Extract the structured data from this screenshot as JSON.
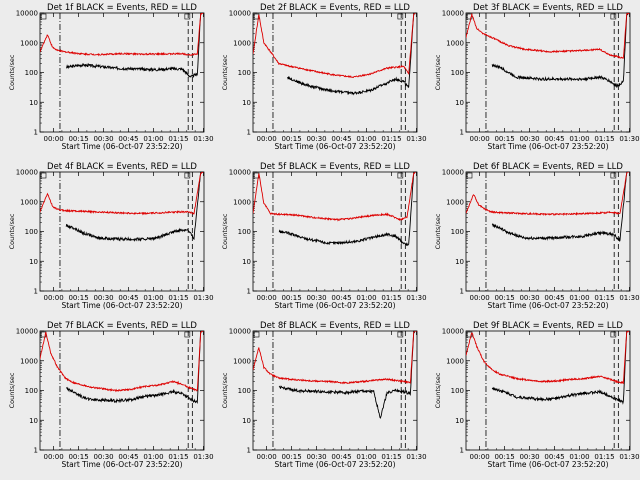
{
  "figure": {
    "background": "#ececec",
    "colors": {
      "events": "#000000",
      "lld": "#dd0000"
    }
  },
  "chart_data": [
    {
      "type": "line",
      "title": "Det 1f BLACK = Events, RED = LLD",
      "xlabel": "Start Time (06-Oct-07 23:52:20)",
      "ylabel": "Counts/sec",
      "y_scale": "log",
      "ylim": [
        1,
        10000
      ],
      "y_ticklabels": [
        "1",
        "10",
        "100",
        "1000",
        "10000"
      ],
      "xlim_minutes": [
        -0.5,
        98
      ],
      "x_ticklabels": [
        "00:00",
        "00:15",
        "00:30",
        "00:45",
        "01:00",
        "01:15",
        "01:30"
      ],
      "series": [
        {
          "name": "Events",
          "color": "#000000",
          "x": [
            2,
            6,
            9,
            15,
            25,
            35,
            45,
            60,
            70,
            78,
            85,
            90,
            94,
            96,
            98
          ],
          "y": [
            null,
            null,
            null,
            150,
            180,
            160,
            140,
            130,
            125,
            135,
            130,
            70,
            90,
            10000,
            12000
          ]
        },
        {
          "name": "LLD",
          "color": "#dd0000",
          "x": [
            -0.5,
            4,
            7,
            10,
            14,
            25,
            35,
            50,
            60,
            75,
            85,
            90,
            94,
            96,
            98
          ],
          "y": [
            500,
            1900,
            700,
            550,
            500,
            420,
            400,
            430,
            410,
            420,
            430,
            390,
            420,
            9000,
            11000
          ]
        }
      ],
      "markers": {
        "dotted_minutes": [],
        "dashdot_minutes": [
          11.5
        ],
        "dashed_minutes": [
          88.5,
          91
        ]
      }
    },
    {
      "type": "line",
      "title": "Det 2f BLACK = Events, RED = LLD",
      "xlabel": "Start Time (06-Oct-07 23:52:20)",
      "ylabel": "Counts/sec",
      "y_scale": "log",
      "ylim": [
        1,
        10000
      ],
      "y_ticklabels": [
        "1",
        "10",
        "100",
        "1000",
        "10000"
      ],
      "xlim_minutes": [
        -0.5,
        98
      ],
      "x_ticklabels": [
        "00:00",
        "00:15",
        "00:30",
        "00:45",
        "01:00",
        "01:15",
        "01:30"
      ],
      "series": [
        {
          "name": "Events",
          "color": "#000000",
          "x": [
            -0.5,
            5,
            10,
            20,
            30,
            45,
            60,
            70,
            80,
            85,
            90,
            93,
            96,
            98
          ],
          "y": [
            null,
            null,
            null,
            70,
            40,
            25,
            20,
            25,
            45,
            60,
            50,
            30,
            10000,
            12000
          ]
        },
        {
          "name": "LLD",
          "color": "#dd0000",
          "x": [
            -0.5,
            3,
            6,
            10,
            15,
            20,
            30,
            40,
            50,
            60,
            70,
            80,
            90,
            93,
            96,
            98
          ],
          "y": [
            400,
            9000,
            1000,
            500,
            200,
            170,
            130,
            100,
            80,
            70,
            90,
            140,
            160,
            90,
            9000,
            11000
          ]
        }
      ],
      "markers": {
        "dotted_minutes": [],
        "dashdot_minutes": [
          11.5
        ],
        "dashed_minutes": [
          88.5,
          91
        ]
      }
    },
    {
      "type": "line",
      "title": "Det 3f BLACK = Events, RED = LLD",
      "xlabel": "Start Time (06-Oct-07 23:52:20)",
      "ylabel": "Counts/sec",
      "y_scale": "log",
      "ylim": [
        1,
        10000
      ],
      "y_ticklabels": [
        "1",
        "10",
        "100",
        "1000",
        "10000"
      ],
      "xlim_minutes": [
        -0.5,
        98
      ],
      "x_ticklabels": [
        "00:00",
        "00:15",
        "00:30",
        "00:45",
        "01:00",
        "01:15",
        "01:30"
      ],
      "series": [
        {
          "name": "Events",
          "color": "#000000",
          "x": [
            2,
            6,
            9,
            15,
            20,
            25,
            30,
            45,
            60,
            70,
            80,
            85,
            90,
            94,
            96,
            98
          ],
          "y": [
            null,
            null,
            null,
            180,
            150,
            100,
            70,
            60,
            60,
            60,
            70,
            55,
            35,
            50,
            9000,
            12000
          ]
        },
        {
          "name": "LLD",
          "color": "#dd0000",
          "x": [
            -0.5,
            3,
            6,
            10,
            15,
            25,
            35,
            50,
            60,
            70,
            80,
            85,
            90,
            94,
            96,
            98
          ],
          "y": [
            1500,
            9000,
            3000,
            2000,
            1500,
            800,
            600,
            500,
            520,
            550,
            600,
            400,
            350,
            300,
            9000,
            11000
          ]
        }
      ],
      "markers": {
        "dotted_minutes": [],
        "dashdot_minutes": [
          11.5
        ],
        "dashed_minutes": [
          88.5,
          91
        ]
      }
    },
    {
      "type": "line",
      "title": "Det 4f BLACK = Events, RED = LLD",
      "xlabel": "Start Time (06-Oct-07 23:52:20)",
      "ylabel": "Counts/sec",
      "y_scale": "log",
      "ylim": [
        1,
        10000
      ],
      "y_ticklabels": [
        "1",
        "10",
        "100",
        "1000",
        "10000"
      ],
      "xlim_minutes": [
        -0.5,
        98
      ],
      "x_ticklabels": [
        "00:00",
        "00:15",
        "00:30",
        "00:45",
        "01:00",
        "01:15",
        "01:30"
      ],
      "series": [
        {
          "name": "Events",
          "color": "#000000",
          "x": [
            2,
            6,
            9,
            15,
            20,
            25,
            35,
            50,
            60,
            70,
            80,
            88,
            92,
            96,
            98
          ],
          "y": [
            null,
            null,
            null,
            160,
            130,
            90,
            60,
            55,
            55,
            60,
            100,
            120,
            60,
            10000,
            12000
          ]
        },
        {
          "name": "LLD",
          "color": "#dd0000",
          "x": [
            -0.5,
            4,
            7,
            10,
            15,
            25,
            35,
            50,
            60,
            70,
            80,
            88,
            92,
            96,
            98
          ],
          "y": [
            450,
            1900,
            700,
            550,
            500,
            480,
            450,
            420,
            400,
            420,
            450,
            460,
            400,
            9000,
            11000
          ]
        }
      ],
      "markers": {
        "dotted_minutes": [],
        "dashdot_minutes": [
          11.5
        ],
        "dashed_minutes": [
          88.5,
          91
        ]
      }
    },
    {
      "type": "line",
      "title": "Det 5f BLACK = Events, RED = LLD",
      "xlabel": "Start Time (06-Oct-07 23:52:20)",
      "ylabel": "Counts/sec",
      "y_scale": "log",
      "ylim": [
        1,
        10000
      ],
      "y_ticklabels": [
        "1",
        "10",
        "100",
        "1000",
        "10000"
      ],
      "xlim_minutes": [
        -0.5,
        98
      ],
      "x_ticklabels": [
        "00:00",
        "00:15",
        "00:30",
        "00:45",
        "01:00",
        "01:15",
        "01:30"
      ],
      "series": [
        {
          "name": "Events",
          "color": "#000000",
          "x": [
            -0.5,
            5,
            10,
            15,
            20,
            30,
            45,
            60,
            70,
            80,
            85,
            90,
            93,
            96,
            98
          ],
          "y": [
            null,
            null,
            null,
            100,
            90,
            60,
            40,
            45,
            60,
            80,
            70,
            40,
            35,
            10000,
            12000
          ]
        },
        {
          "name": "LLD",
          "color": "#dd0000",
          "x": [
            -0.5,
            3,
            6,
            10,
            15,
            25,
            35,
            50,
            60,
            70,
            80,
            88,
            92,
            96,
            98
          ],
          "y": [
            400,
            9000,
            900,
            400,
            380,
            360,
            300,
            250,
            280,
            340,
            380,
            250,
            300,
            9000,
            11000
          ]
        }
      ],
      "markers": {
        "dotted_minutes": [],
        "dashdot_minutes": [
          11.5
        ],
        "dashed_minutes": [
          88.5,
          91
        ]
      }
    },
    {
      "type": "line",
      "title": "Det 6f BLACK = Events, RED = LLD",
      "xlabel": "Start Time (06-Oct-07 23:52:20)",
      "ylabel": "Counts/sec",
      "y_scale": "log",
      "ylim": [
        1,
        10000
      ],
      "y_ticklabels": [
        "1",
        "10",
        "100",
        "1000",
        "10000"
      ],
      "xlim_minutes": [
        -0.5,
        98
      ],
      "x_ticklabels": [
        "00:00",
        "00:15",
        "00:30",
        "00:45",
        "01:00",
        "01:15",
        "01:30"
      ],
      "series": [
        {
          "name": "Events",
          "color": "#000000",
          "x": [
            2,
            6,
            9,
            15,
            20,
            25,
            35,
            50,
            60,
            70,
            80,
            88,
            92,
            96,
            98
          ],
          "y": [
            null,
            null,
            null,
            170,
            130,
            90,
            60,
            60,
            65,
            70,
            90,
            80,
            50,
            10000,
            12000
          ]
        },
        {
          "name": "LLD",
          "color": "#dd0000",
          "x": [
            -0.5,
            4,
            7,
            10,
            15,
            25,
            35,
            50,
            60,
            70,
            80,
            88,
            92,
            96,
            98
          ],
          "y": [
            400,
            1800,
            800,
            600,
            450,
            420,
            400,
            380,
            380,
            400,
            420,
            440,
            400,
            9000,
            11000
          ]
        }
      ],
      "markers": {
        "dotted_minutes": [],
        "dashdot_minutes": [
          11.5
        ],
        "dashed_minutes": [
          88.5,
          91
        ]
      }
    },
    {
      "type": "line",
      "title": "Det 7f BLACK = Events, RED = LLD",
      "xlabel": "Start Time (06-Oct-07 23:52:20)",
      "ylabel": "Counts/sec",
      "y_scale": "log",
      "ylim": [
        1,
        10000
      ],
      "y_ticklabels": [
        "1",
        "10",
        "100",
        "1000",
        "10000"
      ],
      "xlim_minutes": [
        -0.5,
        98
      ],
      "x_ticklabels": [
        "00:00",
        "00:15",
        "00:30",
        "00:45",
        "01:00",
        "01:15",
        "01:30"
      ],
      "series": [
        {
          "name": "Events",
          "color": "#000000",
          "x": [
            2,
            6,
            9,
            15,
            20,
            25,
            30,
            45,
            55,
            60,
            70,
            80,
            85,
            90,
            94,
            96,
            98
          ],
          "y": [
            null,
            null,
            null,
            120,
            90,
            60,
            50,
            45,
            50,
            60,
            70,
            90,
            80,
            50,
            40,
            10000,
            12000
          ]
        },
        {
          "name": "LLD",
          "color": "#dd0000",
          "x": [
            -0.5,
            3,
            6,
            10,
            15,
            20,
            30,
            45,
            55,
            60,
            70,
            80,
            85,
            90,
            94,
            96,
            98
          ],
          "y": [
            1200,
            9000,
            1800,
            600,
            250,
            180,
            130,
            100,
            110,
            130,
            150,
            200,
            160,
            120,
            100,
            9000,
            11000
          ]
        }
      ],
      "markers": {
        "dotted_minutes": [],
        "dashdot_minutes": [
          11.5
        ],
        "dashed_minutes": [
          88.5,
          91
        ]
      }
    },
    {
      "type": "line",
      "title": "Det 8f BLACK = Events, RED = LLD",
      "xlabel": "Start Time (06-Oct-07 23:52:20)",
      "ylabel": "Counts/sec",
      "y_scale": "log",
      "ylim": [
        1,
        10000
      ],
      "y_ticklabels": [
        "1",
        "10",
        "100",
        "1000",
        "10000"
      ],
      "xlim_minutes": [
        -0.5,
        98
      ],
      "x_ticklabels": [
        "00:00",
        "00:15",
        "00:30",
        "00:45",
        "01:00",
        "01:15",
        "01:30"
      ],
      "series": [
        {
          "name": "Events",
          "color": "#000000",
          "x": [
            2,
            6,
            9,
            15,
            25,
            35,
            45,
            55,
            60,
            65,
            72,
            76,
            80,
            85,
            90,
            94,
            96,
            98
          ],
          "y": [
            null,
            null,
            null,
            130,
            100,
            95,
            90,
            85,
            90,
            95,
            90,
            12,
            85,
            100,
            90,
            80,
            9000,
            11000
          ]
        },
        {
          "name": "LLD",
          "color": "#dd0000",
          "x": [
            -0.5,
            3,
            6,
            10,
            15,
            25,
            35,
            45,
            55,
            60,
            65,
            72,
            80,
            85,
            90,
            94,
            96,
            98
          ],
          "y": [
            500,
            2800,
            600,
            350,
            260,
            230,
            210,
            200,
            180,
            190,
            200,
            220,
            240,
            220,
            200,
            180,
            9000,
            11000
          ]
        }
      ],
      "markers": {
        "dotted_minutes": [],
        "dashdot_minutes": [
          11.5
        ],
        "dashed_minutes": [
          88.5,
          91
        ]
      }
    },
    {
      "type": "line",
      "title": "Det 9f BLACK = Events, RED = LLD",
      "xlabel": "Start Time (06-Oct-07 23:52:20)",
      "ylabel": "Counts/sec",
      "y_scale": "log",
      "ylim": [
        1,
        10000
      ],
      "y_ticklabels": [
        "1",
        "10",
        "100",
        "1000",
        "10000"
      ],
      "xlim_minutes": [
        -0.5,
        98
      ],
      "x_ticklabels": [
        "00:00",
        "00:15",
        "00:30",
        "00:45",
        "01:00",
        "01:15",
        "01:30"
      ],
      "series": [
        {
          "name": "Events",
          "color": "#000000",
          "x": [
            2,
            6,
            9,
            15,
            20,
            25,
            30,
            45,
            55,
            60,
            70,
            80,
            85,
            90,
            94,
            96,
            98
          ],
          "y": [
            null,
            null,
            null,
            120,
            100,
            80,
            60,
            50,
            55,
            65,
            80,
            90,
            70,
            50,
            40,
            10000,
            12000
          ]
        },
        {
          "name": "LLD",
          "color": "#dd0000",
          "x": [
            -0.5,
            3,
            6,
            10,
            15,
            20,
            30,
            45,
            55,
            60,
            70,
            80,
            85,
            90,
            94,
            96,
            98
          ],
          "y": [
            1500,
            9000,
            3000,
            1000,
            500,
            350,
            250,
            200,
            210,
            230,
            250,
            300,
            250,
            200,
            180,
            9000,
            11000
          ]
        }
      ],
      "markers": {
        "dotted_minutes": [],
        "dashdot_minutes": [
          11.5
        ],
        "dashed_minutes": [
          88.5,
          91
        ]
      }
    }
  ]
}
